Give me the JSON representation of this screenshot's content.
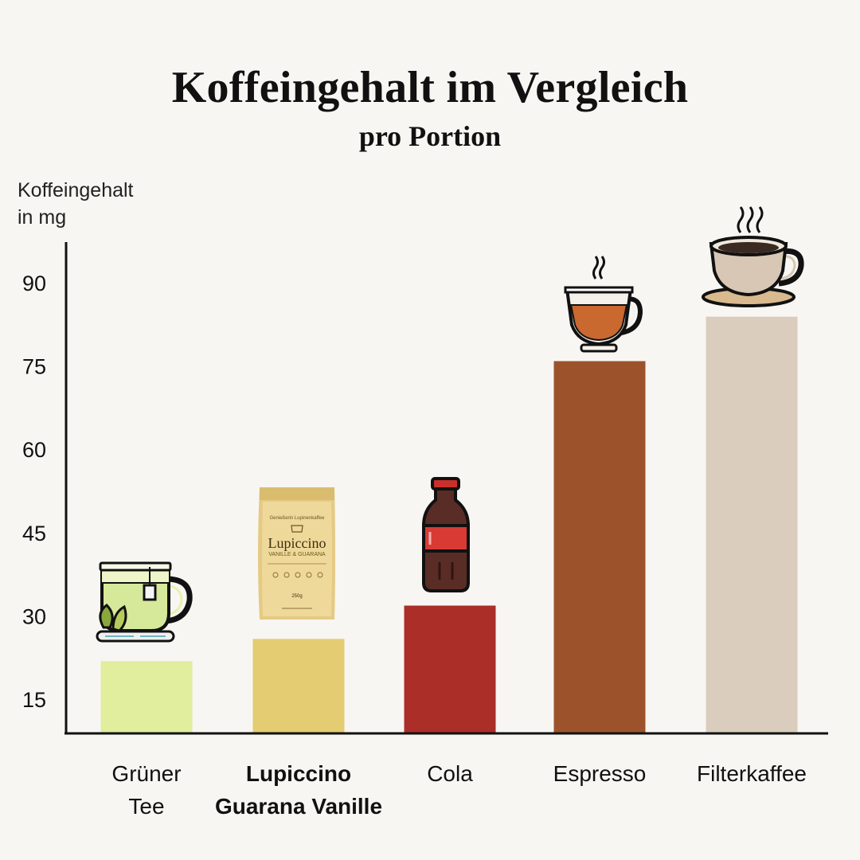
{
  "chart_data": {
    "type": "bar",
    "title": "Koffeingehalt im Vergleich",
    "subtitle": "pro Portion",
    "ylabel_lines": [
      "Koffeingehalt",
      "in mg"
    ],
    "xlabel": "",
    "yticks": [
      15,
      30,
      45,
      60,
      75,
      90
    ],
    "ylim": [
      9,
      98
    ],
    "categories": [
      [
        "Grüner",
        "Tee"
      ],
      [
        "Lupiccino",
        "Guarana Vanille"
      ],
      [
        "Cola"
      ],
      [
        "Espresso"
      ],
      [
        "Filterkaffee"
      ]
    ],
    "values": [
      22,
      26,
      32,
      76,
      84
    ],
    "bar_colors": [
      "#e0ee9e",
      "#e3cc72",
      "#ab2f28",
      "#9c532c",
      "#dacdbd"
    ],
    "highlight_index": 1,
    "icons": [
      "green-tea-cup-icon",
      "lupiccino-package-icon",
      "cola-bottle-icon",
      "espresso-cup-icon",
      "filter-coffee-cup-icon"
    ],
    "package": {
      "brand_small": "Genießerin Lupinenkaffee",
      "name": "Lupiccino",
      "variant": "VANILLE & GUARANA",
      "weight": "250g"
    }
  }
}
